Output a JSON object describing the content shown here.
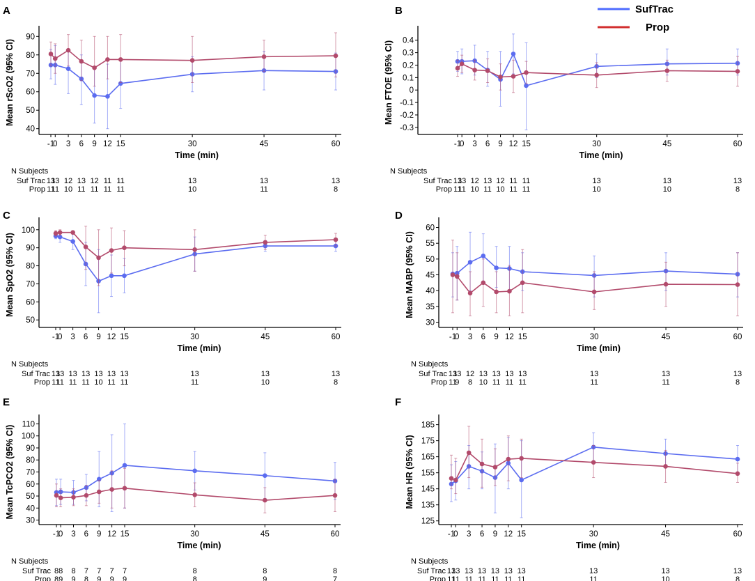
{
  "legend": {
    "suftrac_label": "SufTrac",
    "prop_label": "Prop",
    "suftrac_color": "#5b6cf0",
    "prop_color": "#b24a6b",
    "suftrac_legend_color": "#4d6bff",
    "prop_legend_color": "#d22f2f"
  },
  "chart_data": [
    {
      "panel": "A",
      "type": "line",
      "ylabel": "Mean rScO2 (95% CI)",
      "xlabel": "Time (min)",
      "x": [
        -1,
        0,
        3,
        6,
        9,
        12,
        15,
        30,
        45,
        60
      ],
      "x_ticks": [
        "-1",
        "0",
        "3",
        "6",
        "9",
        "12",
        "15",
        "30",
        "45",
        "60"
      ],
      "ylim": [
        38,
        92
      ],
      "y_ticks": [
        40,
        50,
        60,
        70,
        80,
        90
      ],
      "y_tick_labels": [
        "40",
        "50",
        "60",
        "70",
        "80",
        "90"
      ],
      "series": [
        {
          "name": "SufTrac",
          "values": [
            74.5,
            74.5,
            72.5,
            67,
            58,
            57.5,
            64.5,
            69.5,
            71.5,
            71
          ],
          "lower": [
            67,
            64,
            59,
            53,
            43,
            40,
            51,
            60,
            61,
            61
          ],
          "upper": [
            83,
            85,
            83,
            80,
            73,
            75,
            78,
            79,
            82,
            81
          ]
        },
        {
          "name": "Prop",
          "values": [
            80.5,
            78,
            82.5,
            76.5,
            73,
            77.5,
            77.5,
            77,
            79,
            79.5
          ],
          "lower": [
            74,
            70,
            74,
            66,
            63,
            67,
            65,
            65,
            71,
            68
          ],
          "upper": [
            87,
            86,
            91,
            88,
            90,
            90,
            91,
            90,
            88,
            92
          ]
        }
      ],
      "subjects_header": "N Subjects",
      "subjects": [
        {
          "label": "Suf Trac",
          "counts": [
            "13",
            "13",
            "12",
            "13",
            "12",
            "11",
            "11",
            "13",
            "13",
            "13"
          ]
        },
        {
          "label": "Prop",
          "counts": [
            "11",
            "11",
            "10",
            "11",
            "11",
            "11",
            "11",
            "10",
            "11",
            "8"
          ]
        }
      ]
    },
    {
      "panel": "B",
      "type": "line",
      "ylabel": "Mean FTOE (95% CI)",
      "xlabel": "Time (min)",
      "x": [
        -1,
        0,
        3,
        6,
        9,
        12,
        15,
        30,
        45,
        60
      ],
      "x_ticks": [
        "-1",
        "0",
        "3",
        "6",
        "9",
        "12",
        "15",
        "30",
        "45",
        "60"
      ],
      "ylim": [
        -0.34,
        0.46
      ],
      "y_ticks": [
        -0.3,
        -0.2,
        -0.1,
        0,
        0.1,
        0.2,
        0.3,
        0.4
      ],
      "y_tick_labels": [
        "-0.3",
        "-0.2",
        "-0.1",
        "0",
        "0.1",
        "0.2",
        "0.3",
        "0.4"
      ],
      "series": [
        {
          "name": "SufTrac",
          "values": [
            0.23,
            0.23,
            0.235,
            0.16,
            0.085,
            0.29,
            0.035,
            0.19,
            0.21,
            0.215
          ],
          "lower": [
            0.15,
            0.13,
            0.12,
            0.03,
            -0.13,
            0.13,
            -0.32,
            0.1,
            0.12,
            0.12
          ],
          "upper": [
            0.31,
            0.33,
            0.36,
            0.31,
            0.31,
            0.45,
            0.38,
            0.29,
            0.33,
            0.33
          ]
        },
        {
          "name": "Prop",
          "values": [
            0.175,
            0.21,
            0.16,
            0.155,
            0.105,
            0.11,
            0.14,
            0.12,
            0.155,
            0.15
          ],
          "lower": [
            0.11,
            0.14,
            0.08,
            0.06,
            0.0,
            -0.02,
            0.05,
            0.02,
            0.07,
            0.03
          ],
          "upper": [
            0.24,
            0.28,
            0.24,
            0.25,
            0.21,
            0.24,
            0.23,
            0.22,
            0.24,
            0.27
          ]
        }
      ],
      "subjects_header": "N Subjects",
      "subjects": [
        {
          "label": "Suf Trac",
          "counts": [
            "13",
            "13",
            "12",
            "13",
            "12",
            "11",
            "11",
            "13",
            "13",
            "13"
          ]
        },
        {
          "label": "Prop",
          "counts": [
            "11",
            "11",
            "10",
            "11",
            "10",
            "11",
            "11",
            "10",
            "10",
            "8"
          ]
        }
      ]
    },
    {
      "panel": "C",
      "type": "line",
      "ylabel": "Mean SpO2 (95% CI)",
      "xlabel": "Time (min)",
      "x": [
        -1,
        0,
        3,
        6,
        9,
        12,
        15,
        30,
        45,
        60
      ],
      "x_ticks": [
        "-1",
        "0",
        "3",
        "6",
        "9",
        "12",
        "15",
        "30",
        "45",
        "60"
      ],
      "ylim": [
        47,
        103
      ],
      "y_ticks": [
        50,
        60,
        70,
        80,
        90,
        100
      ],
      "y_tick_labels": [
        "50",
        "60",
        "70",
        "80",
        "90",
        "100"
      ],
      "series": [
        {
          "name": "SufTrac",
          "values": [
            96.5,
            96,
            93.5,
            81,
            71.5,
            74.5,
            74.5,
            86.5,
            91,
            91
          ],
          "lower": [
            95,
            93,
            89,
            69,
            54,
            63,
            65,
            77,
            88,
            88
          ],
          "upper": [
            98,
            99,
            98,
            93,
            89,
            86,
            84,
            96,
            94,
            94
          ]
        },
        {
          "name": "Prop",
          "values": [
            98,
            98.5,
            98.5,
            90.5,
            84.5,
            88.5,
            90,
            89,
            93,
            94.5
          ],
          "lower": [
            96.5,
            97,
            97.5,
            78,
            69,
            76,
            80,
            77,
            89,
            91
          ],
          "upper": [
            99.5,
            100,
            99.5,
            102,
            100,
            101,
            99.5,
            100,
            97,
            98
          ]
        }
      ],
      "subjects_header": "N Subjects",
      "subjects": [
        {
          "label": "Suf Trac",
          "counts": [
            "13",
            "13",
            "13",
            "13",
            "13",
            "13",
            "13",
            "13",
            "13",
            "13"
          ]
        },
        {
          "label": "Prop",
          "counts": [
            "11",
            "11",
            "11",
            "11",
            "10",
            "11",
            "11",
            "11",
            "10",
            "8"
          ]
        }
      ]
    },
    {
      "panel": "D",
      "type": "line",
      "ylabel": "Mean MABP (95% CI)",
      "xlabel": "Time (min)",
      "x": [
        -1,
        0,
        3,
        6,
        9,
        12,
        15,
        30,
        45,
        60
      ],
      "x_ticks": [
        "-1",
        "0",
        "3",
        "6",
        "9",
        "12",
        "15",
        "30",
        "45",
        "60"
      ],
      "ylim": [
        29,
        61
      ],
      "y_ticks": [
        30,
        35,
        40,
        45,
        50,
        55,
        60
      ],
      "y_tick_labels": [
        "30",
        "35",
        "40",
        "45",
        "50",
        "55",
        "60"
      ],
      "series": [
        {
          "name": "SufTrac",
          "values": [
            45.3,
            45.5,
            49,
            51,
            47.2,
            47,
            46,
            44.8,
            46.2,
            45.2
          ],
          "lower": [
            38,
            37,
            40,
            43,
            41,
            40,
            40,
            38,
            40,
            38
          ],
          "upper": [
            52,
            54,
            58.5,
            58,
            54,
            54,
            52,
            51,
            52,
            52
          ]
        },
        {
          "name": "Prop",
          "values": [
            45,
            44.5,
            39.2,
            42.5,
            39.6,
            39.8,
            42.5,
            39.6,
            42,
            41.9
          ],
          "lower": [
            33,
            37,
            32,
            35,
            33,
            32,
            33,
            34,
            35,
            32
          ],
          "upper": [
            56,
            52,
            46,
            50,
            46,
            48,
            53,
            46,
            49,
            52
          ]
        }
      ],
      "subjects_header": "N Subjects",
      "subjects": [
        {
          "label": "Suf Trac",
          "counts": [
            "13",
            "13",
            "12",
            "13",
            "13",
            "13",
            "13",
            "13",
            "13",
            "13"
          ]
        },
        {
          "label": "Prop",
          "counts": [
            "11",
            "9",
            "8",
            "10",
            "11",
            "11",
            "11",
            "11",
            "11",
            "8"
          ]
        }
      ]
    },
    {
      "panel": "E",
      "type": "line",
      "ylabel": "Mean TcPCO2 (95% CI)",
      "xlabel": "Time (min)",
      "x": [
        -1,
        0,
        3,
        6,
        9,
        12,
        15,
        30,
        45,
        60
      ],
      "x_ticks": [
        "-1",
        "0",
        "3",
        "6",
        "9",
        "12",
        "15",
        "30",
        "45",
        "60"
      ],
      "ylim": [
        28,
        112
      ],
      "y_ticks": [
        30,
        40,
        50,
        60,
        70,
        80,
        90,
        100,
        110
      ],
      "y_tick_labels": [
        "30",
        "40",
        "50",
        "60",
        "70",
        "80",
        "90",
        "100",
        "110"
      ],
      "series": [
        {
          "name": "SufTrac",
          "values": [
            53,
            53.5,
            53,
            57,
            64,
            69,
            75.5,
            71,
            67,
            62.5
          ],
          "lower": [
            42,
            43,
            43,
            46,
            41,
            37,
            40,
            55,
            48,
            47
          ],
          "upper": [
            64,
            64,
            63,
            68,
            87,
            101,
            110,
            87,
            86,
            78
          ]
        },
        {
          "name": "Prop",
          "values": [
            50.5,
            48.5,
            49,
            50.5,
            53.5,
            55.5,
            56.5,
            51,
            46.5,
            50.5
          ],
          "lower": [
            41,
            41,
            42,
            42,
            44,
            40,
            40,
            41,
            36,
            37
          ],
          "upper": [
            60,
            56,
            56,
            59,
            63,
            71,
            73,
            61,
            57,
            64
          ]
        }
      ],
      "subjects_header": "N Subjects",
      "subjects": [
        {
          "label": "Suf Trac",
          "counts": [
            "8",
            "8",
            "8",
            "7",
            "7",
            "7",
            "7",
            "8",
            "8",
            "8"
          ]
        },
        {
          "label": "Prop",
          "counts": [
            "8",
            "9",
            "9",
            "8",
            "9",
            "9",
            "9",
            "8",
            "9",
            "7"
          ]
        }
      ]
    },
    {
      "panel": "F",
      "type": "line",
      "ylabel": "Mean HR (95% CI)",
      "xlabel": "Time (min)",
      "x": [
        -1,
        0,
        3,
        6,
        9,
        12,
        15,
        30,
        45,
        60
      ],
      "x_ticks": [
        "-1",
        "0",
        "3",
        "6",
        "9",
        "12",
        "15",
        "30",
        "45",
        "60"
      ],
      "ylim": [
        124,
        187
      ],
      "y_ticks": [
        125,
        135,
        145,
        155,
        165,
        175,
        185
      ],
      "y_tick_labels": [
        "125",
        "135",
        "145",
        "155",
        "165",
        "175",
        "185"
      ],
      "series": [
        {
          "name": "SufTrac",
          "values": [
            148,
            150,
            159,
            156,
            152,
            161,
            150.5,
            171,
            167,
            163.5
          ],
          "lower": [
            137,
            138,
            145,
            145,
            130,
            145,
            127,
            162,
            158,
            155
          ],
          "upper": [
            160,
            162,
            172,
            168,
            173,
            177,
            175,
            180,
            176,
            172
          ]
        },
        {
          "name": "Prop",
          "values": [
            151.5,
            150.5,
            167.5,
            160.5,
            158.5,
            163.5,
            164,
            161.5,
            159,
            154.5
          ],
          "lower": [
            145,
            142,
            152,
            146,
            147,
            150,
            152,
            152,
            149,
            149
          ],
          "upper": [
            166,
            164,
            184,
            176,
            170,
            178,
            176,
            172,
            169,
            161
          ]
        }
      ],
      "subjects_header": "N Subjects",
      "subjects": [
        {
          "label": "Suf Trac",
          "counts": [
            "13",
            "13",
            "13",
            "13",
            "13",
            "13",
            "13",
            "13",
            "13",
            "13"
          ]
        },
        {
          "label": "Prop",
          "counts": [
            "11",
            "11",
            "11",
            "11",
            "11",
            "11",
            "11",
            "11",
            "10",
            "8"
          ]
        }
      ]
    }
  ]
}
